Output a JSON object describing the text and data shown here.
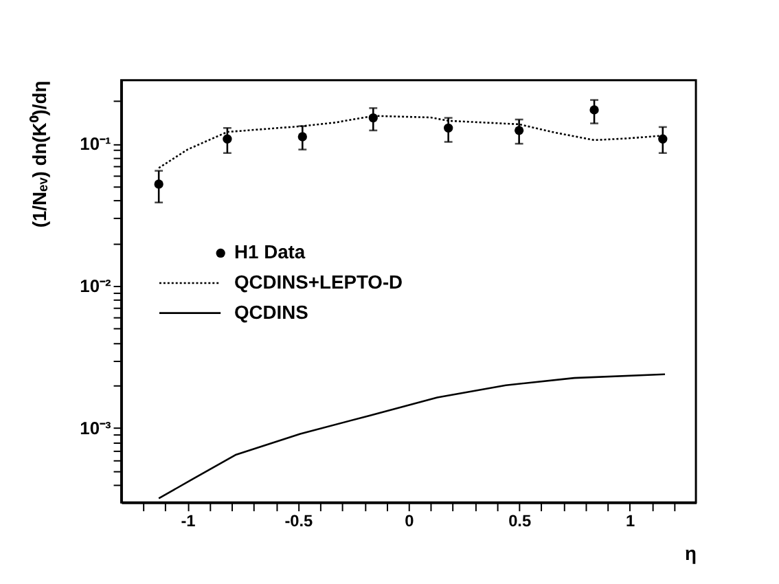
{
  "chart_data": {
    "type": "scatter",
    "xlabel": "η",
    "ylabel": "(1/Nₑᵥ)  dn(K⁰)/dη",
    "log": "y",
    "grid": false,
    "legend": "left",
    "xlim": [
      -1.3,
      1.3
    ],
    "ylim": [
      0.0003,
      0.28
    ],
    "xticks": [
      {
        "value": -1.2,
        "label": null
      },
      {
        "value": -1.1,
        "label": null
      },
      -1,
      {
        "value": -0.9,
        "label": null
      },
      {
        "value": -0.8,
        "label": null
      },
      {
        "value": -0.7,
        "label": null
      },
      {
        "value": -0.6,
        "label": null
      },
      -0.5,
      {
        "value": -0.4,
        "label": null
      },
      {
        "value": -0.3,
        "label": null
      },
      {
        "value": -0.2,
        "label": null
      },
      {
        "value": -0.1,
        "label": null
      },
      0,
      {
        "value": 0.1,
        "label": null
      },
      {
        "value": 0.2,
        "label": null
      },
      {
        "value": 0.3,
        "label": null
      },
      {
        "value": 0.4,
        "label": null
      },
      0.5,
      {
        "value": 0.6,
        "label": null
      },
      {
        "value": 0.7,
        "label": null
      },
      {
        "value": 0.8,
        "label": null
      },
      {
        "value": 0.9,
        "label": null
      },
      1,
      {
        "value": 1.1,
        "label": null
      },
      {
        "value": 1.2,
        "label": null
      }
    ],
    "yticks": [
      {
        "value": 0.0004,
        "label": null
      },
      {
        "value": 0.0005,
        "label": null
      },
      {
        "value": 0.0006,
        "label": null
      },
      {
        "value": 0.0007,
        "label": null
      },
      {
        "value": 0.0008,
        "label": null
      },
      {
        "value": 0.0009,
        "label": null
      },
      {
        "value": 0.001,
        "label": "10⁻³"
      },
      {
        "value": 0.002,
        "label": null
      },
      {
        "value": 0.003,
        "label": null
      },
      {
        "value": 0.004,
        "label": null
      },
      {
        "value": 0.005,
        "label": null
      },
      {
        "value": 0.006,
        "label": null
      },
      {
        "value": 0.007,
        "label": null
      },
      {
        "value": 0.008,
        "label": null
      },
      {
        "value": 0.009,
        "label": null
      },
      {
        "value": 0.01,
        "label": "10⁻²"
      },
      {
        "value": 0.02,
        "label": null
      },
      {
        "value": 0.03,
        "label": null
      },
      {
        "value": 0.04,
        "label": null
      },
      {
        "value": 0.05,
        "label": null
      },
      {
        "value": 0.06,
        "label": null
      },
      {
        "value": 0.07,
        "label": null
      },
      {
        "value": 0.08,
        "label": null
      },
      {
        "value": 0.09,
        "label": null
      },
      {
        "value": 0.1,
        "label": "10⁻¹"
      },
      {
        "value": 0.2,
        "label": null
      }
    ],
    "series": [
      {
        "name": "H1 Data",
        "marker": "circle",
        "color": "#000000",
        "x": [
          -1.13,
          -0.82,
          -0.48,
          -0.16,
          0.18,
          0.5,
          0.84,
          1.15
        ],
        "values": [
          0.052,
          0.108,
          0.112,
          0.152,
          0.129,
          0.124,
          0.173,
          0.108
        ],
        "errors": [
          [
            0.0386,
            0.0645
          ],
          [
            0.086,
            0.129
          ],
          [
            0.091,
            0.133
          ],
          [
            0.124,
            0.178
          ],
          [
            0.103,
            0.152
          ],
          [
            0.1,
            0.148
          ],
          [
            0.139,
            0.203
          ],
          [
            0.086,
            0.131
          ]
        ]
      },
      {
        "name": "QCDINS+LEPTO-D",
        "type": "line",
        "line_style": "dotted",
        "marker": "none",
        "color": "#000000",
        "x": [
          -1.13,
          -1.0,
          -0.82,
          -0.48,
          -0.33,
          -0.16,
          0.1,
          0.18,
          0.5,
          0.66,
          0.84,
          0.99,
          1.15
        ],
        "values": [
          0.0675,
          0.091,
          0.121,
          0.133,
          0.141,
          0.157,
          0.153,
          0.145,
          0.137,
          0.12,
          0.106,
          0.109,
          0.114
        ]
      },
      {
        "name": "QCDINS",
        "type": "line",
        "line_style": "solid",
        "marker": "none",
        "color": "#000000",
        "x": [
          -1.13,
          -0.98,
          -0.78,
          -0.49,
          -0.18,
          0.13,
          0.44,
          0.75,
          1.16
        ],
        "values": [
          0.00032,
          0.000435,
          0.00065,
          0.00091,
          0.00122,
          0.00164,
          0.002,
          0.00225,
          0.00239
        ]
      }
    ]
  }
}
